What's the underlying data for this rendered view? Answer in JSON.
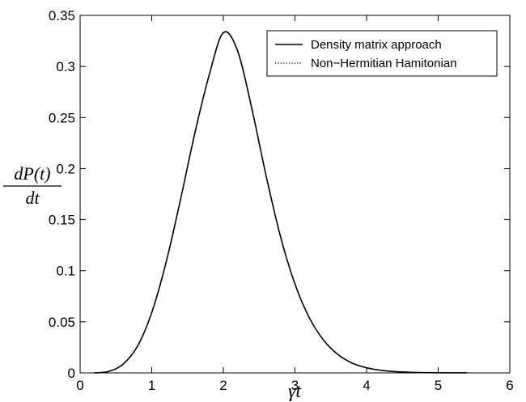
{
  "chart_data": {
    "type": "line",
    "title": "",
    "xlabel": "γt",
    "ylabel": {
      "numerator": "dP(t)",
      "denominator": "dt"
    },
    "xlim": [
      0,
      6
    ],
    "ylim": [
      0,
      0.35
    ],
    "xticks": [
      0,
      1,
      2,
      3,
      4,
      5,
      6
    ],
    "xtick_labels": [
      "0",
      "1",
      "2",
      "3",
      "4",
      "5",
      "6"
    ],
    "yticks": [
      0,
      0.05,
      0.1,
      0.15,
      0.2,
      0.25,
      0.3,
      0.35
    ],
    "ytick_labels": [
      "0",
      "0.05",
      "0.1",
      "0.15",
      "0.2",
      "0.25",
      "0.3",
      "0.35"
    ],
    "grid": false,
    "legend": {
      "position": "top-right"
    },
    "series": [
      {
        "name": "Density matrix approach",
        "style": "solid",
        "color": "#000000",
        "x": [
          0.2,
          0.4,
          0.6,
          0.8,
          1.0,
          1.2,
          1.4,
          1.6,
          1.8,
          2.0,
          2.2,
          2.4,
          2.6,
          2.8,
          3.0,
          3.2,
          3.4,
          3.6,
          3.8,
          4.0,
          4.2,
          4.4,
          4.6,
          4.8,
          5.0,
          5.2,
          5.4
        ],
        "y": [
          0.0,
          0.0015,
          0.0085,
          0.026,
          0.059,
          0.108,
          0.169,
          0.234,
          0.291,
          0.333,
          0.315,
          0.258,
          0.192,
          0.133,
          0.087,
          0.054,
          0.032,
          0.018,
          0.0095,
          0.005,
          0.0025,
          0.0012,
          0.0006,
          0.0003,
          0.00015,
          7e-05,
          3e-05
        ]
      },
      {
        "name": "Non−Hermitian Hamitonian",
        "style": "dotted",
        "color": "#000000",
        "x": [
          0.2,
          0.4,
          0.6,
          0.8,
          1.0,
          1.2,
          1.4,
          1.6,
          1.8,
          2.0,
          2.2,
          2.4,
          2.6,
          2.8,
          3.0,
          3.2,
          3.4,
          3.6,
          3.8,
          4.0,
          4.2,
          4.4,
          4.6,
          4.8,
          5.0,
          5.2,
          5.4
        ],
        "y": [
          0.0,
          0.0015,
          0.0086,
          0.0262,
          0.0592,
          0.1083,
          0.1694,
          0.2344,
          0.2914,
          0.3335,
          0.3155,
          0.2585,
          0.1925,
          0.1335,
          0.0873,
          0.0542,
          0.0321,
          0.0181,
          0.0096,
          0.005,
          0.0025,
          0.0012,
          0.0006,
          0.0003,
          0.00015,
          7e-05,
          3e-05
        ]
      }
    ]
  }
}
